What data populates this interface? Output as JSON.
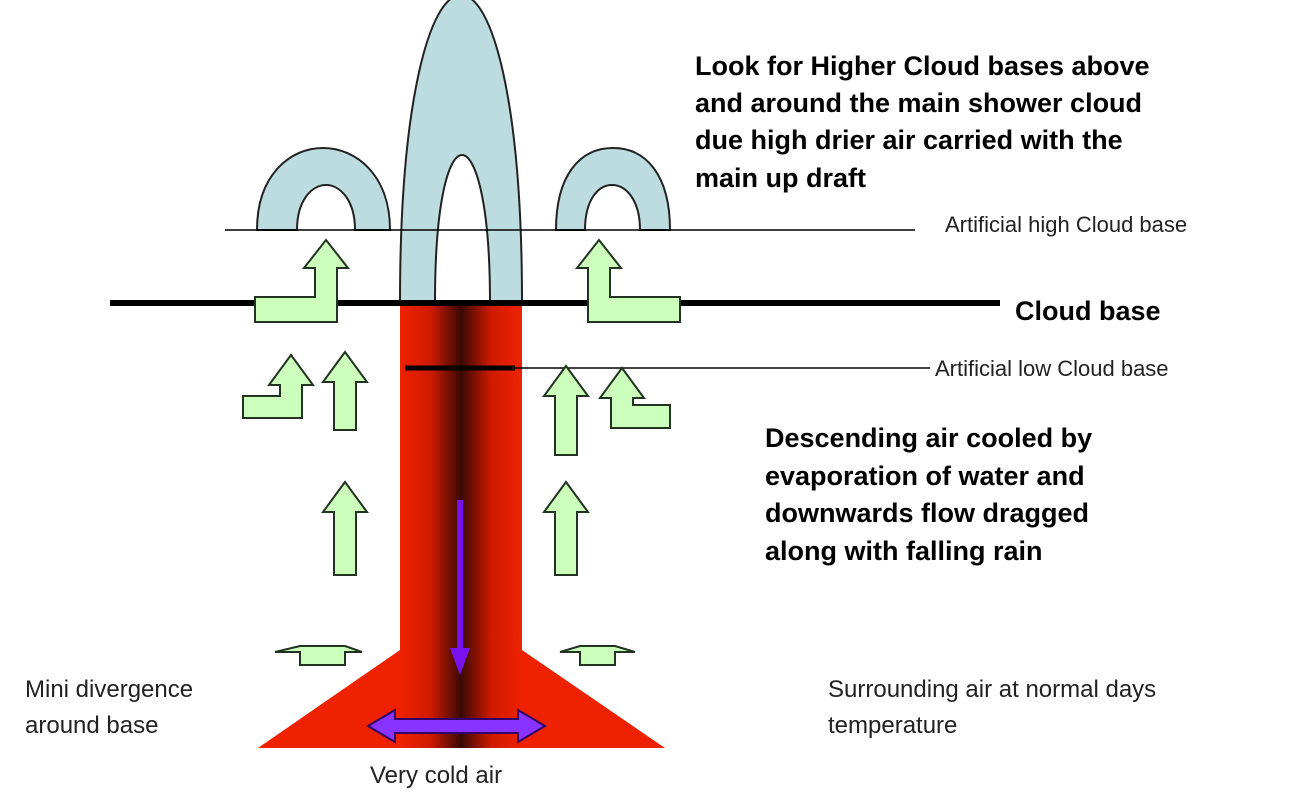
{
  "labels": {
    "higher_cloud_note": [
      "Look for Higher Cloud bases above",
      "and around the main shower cloud",
      "due high drier air carried with the",
      "main up draft"
    ],
    "artificial_high": "Artificial high Cloud base",
    "cloud_base": "Cloud base",
    "artificial_low": "Artificial low Cloud base",
    "descending_note": [
      "Descending air cooled by",
      "evaporation of water and",
      "downwards flow dragged",
      "along with falling rain"
    ],
    "mini_divergence": [
      "Mini divergence",
      "around base"
    ],
    "surrounding": [
      "Surrounding air at normal days",
      "temperature"
    ],
    "cold_air": "Very cold air"
  }
}
